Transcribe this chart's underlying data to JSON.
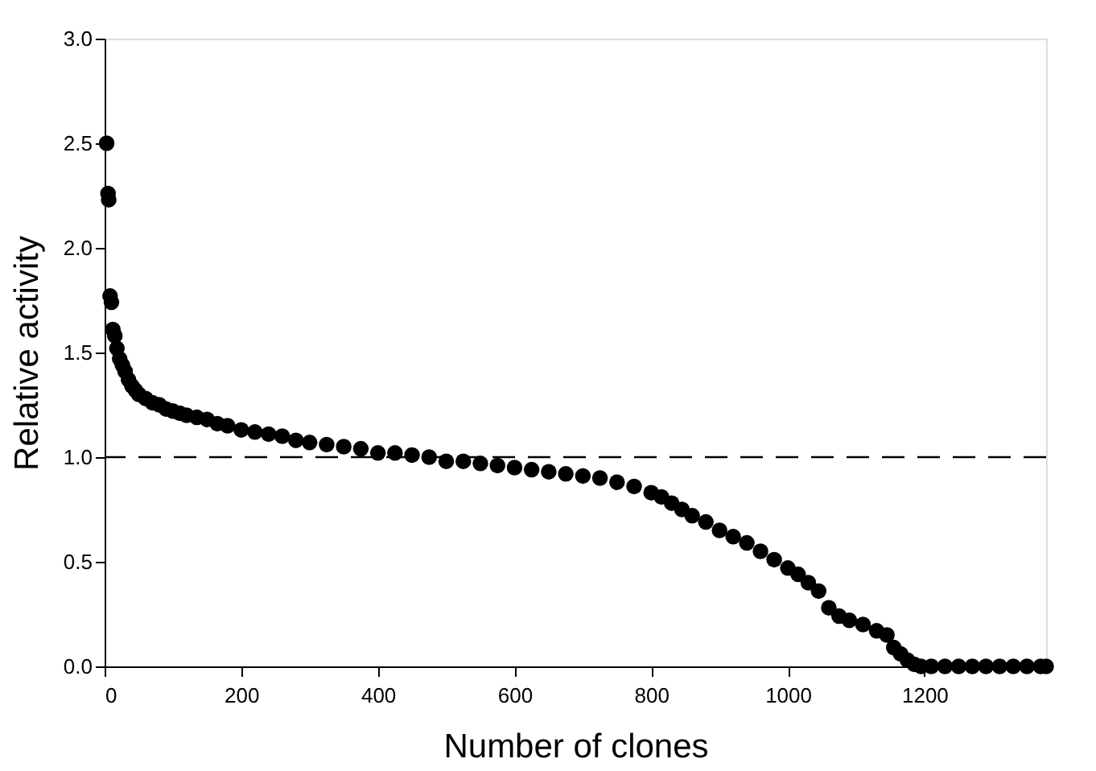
{
  "chart_data": {
    "type": "scatter",
    "xlabel": "Number of clones",
    "ylabel": "Relative activity",
    "xlim": [
      0,
      1378
    ],
    "xticks": [
      0,
      200,
      400,
      600,
      800,
      1000,
      1200
    ],
    "ylim": [
      0,
      3.0
    ],
    "yticks": [
      {
        "value": 0,
        "label": "0.0"
      },
      {
        "value": 0.5,
        "label": "0.5"
      },
      {
        "value": 1,
        "label": "1.0"
      },
      {
        "value": 1.5,
        "label": "1.5"
      },
      {
        "value": 2,
        "label": "2.0"
      },
      {
        "value": 2.5,
        "label": "2.5"
      },
      {
        "value": 3,
        "label": "3.0"
      }
    ],
    "marker": "circle",
    "grid": false,
    "legend": false,
    "ref_lines": [
      {
        "axis": "y",
        "value": 1.0,
        "line_style": "dashed",
        "color": "#000000"
      }
    ],
    "series": [
      {
        "color": "#000000",
        "x": [
          3,
          5,
          6,
          8,
          10,
          12,
          15,
          18,
          22,
          26,
          30,
          35,
          40,
          45,
          50,
          60,
          70,
          80,
          90,
          100,
          110,
          120,
          135,
          150,
          165,
          180,
          200,
          220,
          240,
          260,
          280,
          300,
          325,
          350,
          375,
          400,
          425,
          450,
          475,
          500,
          525,
          550,
          575,
          600,
          625,
          650,
          675,
          700,
          725,
          750,
          775,
          800,
          815,
          830,
          845,
          860,
          880,
          900,
          920,
          940,
          960,
          980,
          1000,
          1015,
          1030,
          1045,
          1060,
          1075,
          1090,
          1110,
          1130,
          1145,
          1155,
          1165,
          1175,
          1185,
          1195,
          1210,
          1230,
          1250,
          1270,
          1290,
          1310,
          1330,
          1350,
          1370,
          1378
        ],
        "values": [
          2.5,
          2.26,
          2.23,
          1.77,
          1.74,
          1.61,
          1.58,
          1.52,
          1.47,
          1.44,
          1.41,
          1.37,
          1.34,
          1.32,
          1.3,
          1.28,
          1.26,
          1.25,
          1.23,
          1.22,
          1.21,
          1.2,
          1.19,
          1.18,
          1.16,
          1.15,
          1.13,
          1.12,
          1.11,
          1.1,
          1.08,
          1.07,
          1.06,
          1.05,
          1.04,
          1.02,
          1.02,
          1.01,
          1.0,
          0.98,
          0.98,
          0.97,
          0.96,
          0.95,
          0.94,
          0.93,
          0.92,
          0.91,
          0.9,
          0.88,
          0.86,
          0.83,
          0.81,
          0.78,
          0.75,
          0.72,
          0.69,
          0.65,
          0.62,
          0.59,
          0.55,
          0.51,
          0.47,
          0.44,
          0.4,
          0.36,
          0.28,
          0.24,
          0.22,
          0.2,
          0.17,
          0.15,
          0.09,
          0.06,
          0.03,
          0.01,
          0,
          0,
          0,
          0,
          0,
          0,
          0,
          0,
          0,
          0,
          0
        ]
      }
    ]
  }
}
